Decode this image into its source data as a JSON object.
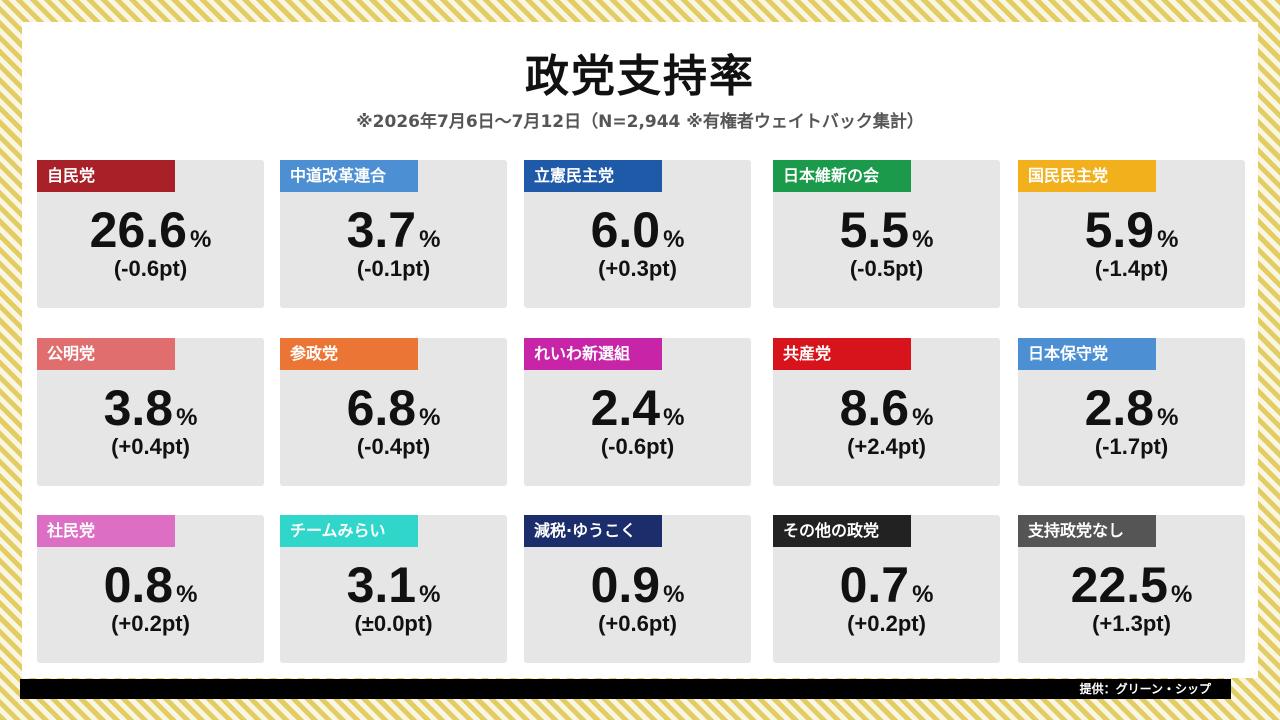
{
  "title": "政党支持率",
  "subtitle": "※2026年7月6日〜7月12日（N=2,944 ※有権者ウェイトバック集計）",
  "footer": "提供：グリーン・シップ",
  "chart_data": {
    "type": "table",
    "title": "政党支持率",
    "unit": "%",
    "parties": [
      {
        "name": "自民党",
        "value": "26.6",
        "change": "(-0.6pt)",
        "color": "#a82128"
      },
      {
        "name": "中道改革連合",
        "value": "3.7",
        "change": "(-0.1pt)",
        "color": "#4c8fd2"
      },
      {
        "name": "立憲民主党",
        "value": "6.0",
        "change": "(+0.3pt)",
        "color": "#1e5aa8"
      },
      {
        "name": "日本維新の会",
        "value": "5.5",
        "change": "(-0.5pt)",
        "color": "#1a9a4a"
      },
      {
        "name": "国民民主党",
        "value": "5.9",
        "change": "(-1.4pt)",
        "color": "#f1b01c"
      },
      {
        "name": "公明党",
        "value": "3.8",
        "change": "(+0.4pt)",
        "color": "#e06e6e"
      },
      {
        "name": "参政党",
        "value": "6.8",
        "change": "(-0.4pt)",
        "color": "#ea7534"
      },
      {
        "name": "れいわ新選組",
        "value": "2.4",
        "change": "(-0.6pt)",
        "color": "#c724a8"
      },
      {
        "name": "共産党",
        "value": "8.6",
        "change": "(+2.4pt)",
        "color": "#d7141b"
      },
      {
        "name": "日本保守党",
        "value": "2.8",
        "change": "(-1.7pt)",
        "color": "#4c8fd2"
      },
      {
        "name": "社民党",
        "value": "0.8",
        "change": "(+0.2pt)",
        "color": "#dc6ec3"
      },
      {
        "name": "チームみらい",
        "value": "3.1",
        "change": "(±0.0pt)",
        "color": "#2fd6c9"
      },
      {
        "name": "減税·ゆうこく",
        "value": "0.9",
        "change": "(+0.6pt)",
        "color": "#1b2d6b"
      },
      {
        "name": "その他の政党",
        "value": "0.7",
        "change": "(+0.2pt)",
        "color": "#222222"
      },
      {
        "name": "支持政党なし",
        "value": "22.5",
        "change": "(+1.3pt)",
        "color": "#555555"
      }
    ]
  }
}
